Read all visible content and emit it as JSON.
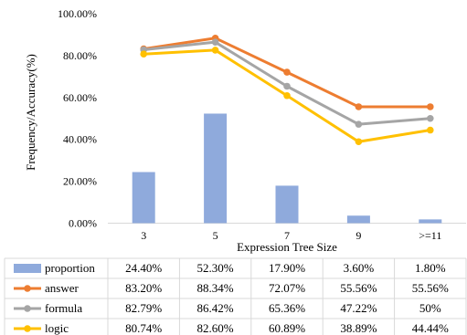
{
  "chart_data": {
    "type": "bar",
    "title": "",
    "xlabel": "Expression Tree Size",
    "ylabel": "Frequency/Accuracy(%)",
    "ylim": [
      0,
      100
    ],
    "y_ticks": [
      "0.00%",
      "20.00%",
      "40.00%",
      "60.00%",
      "80.00%",
      "100.00%"
    ],
    "y_tick_values": [
      0,
      20,
      40,
      60,
      80,
      100
    ],
    "categories": [
      "3",
      "5",
      "7",
      "9",
      ">=11"
    ],
    "grid": false,
    "legend_placement": "bottom-left, as data table",
    "series": [
      {
        "name": "proportion",
        "kind": "bar",
        "color": "#8FAADC",
        "values": [
          24.4,
          52.3,
          17.9,
          3.6,
          1.8
        ],
        "table_values": [
          "24.40%",
          "52.30%",
          "17.90%",
          "3.60%",
          "1.80%"
        ]
      },
      {
        "name": "answer",
        "kind": "line",
        "color": "#ED7D31",
        "values": [
          83.2,
          88.34,
          72.07,
          55.56,
          55.56
        ],
        "table_values": [
          "83.20%",
          "88.34%",
          "72.07%",
          "55.56%",
          "55.56%"
        ]
      },
      {
        "name": "formula",
        "kind": "line",
        "color": "#A5A5A5",
        "values": [
          82.79,
          86.42,
          65.36,
          47.22,
          50
        ],
        "table_values": [
          "82.79%",
          "86.42%",
          "65.36%",
          "47.22%",
          "50%"
        ]
      },
      {
        "name": "logic",
        "kind": "line",
        "color": "#FFC000",
        "values": [
          80.74,
          82.6,
          60.89,
          38.89,
          44.44
        ],
        "table_values": [
          "80.74%",
          "82.60%",
          "60.89%",
          "38.89%",
          "44.44%"
        ]
      }
    ]
  }
}
